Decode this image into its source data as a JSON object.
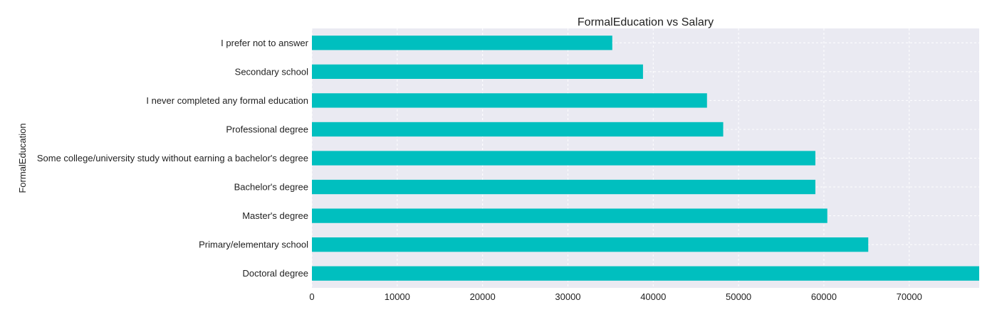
{
  "chart_data": {
    "type": "bar",
    "orientation": "horizontal",
    "title": "FormalEducation vs Salary",
    "xlabel": "",
    "ylabel": "FormalEducation",
    "categories": [
      "Doctoral degree",
      "Primary/elementary school",
      "Master's degree",
      "Bachelor's degree",
      "Some college/university study without earning a bachelor's degree",
      "Professional degree",
      "I never completed any formal education",
      "Secondary school",
      "I prefer not to answer"
    ],
    "values": [
      78500,
      65200,
      60400,
      59000,
      59000,
      48200,
      46300,
      38800,
      35200
    ],
    "xlim": [
      0,
      78200
    ],
    "xticks": [
      0,
      10000,
      20000,
      30000,
      40000,
      50000,
      60000,
      70000
    ],
    "bar_color": "#00bfbf",
    "background_color": "#eaeaf2",
    "grid": true
  }
}
